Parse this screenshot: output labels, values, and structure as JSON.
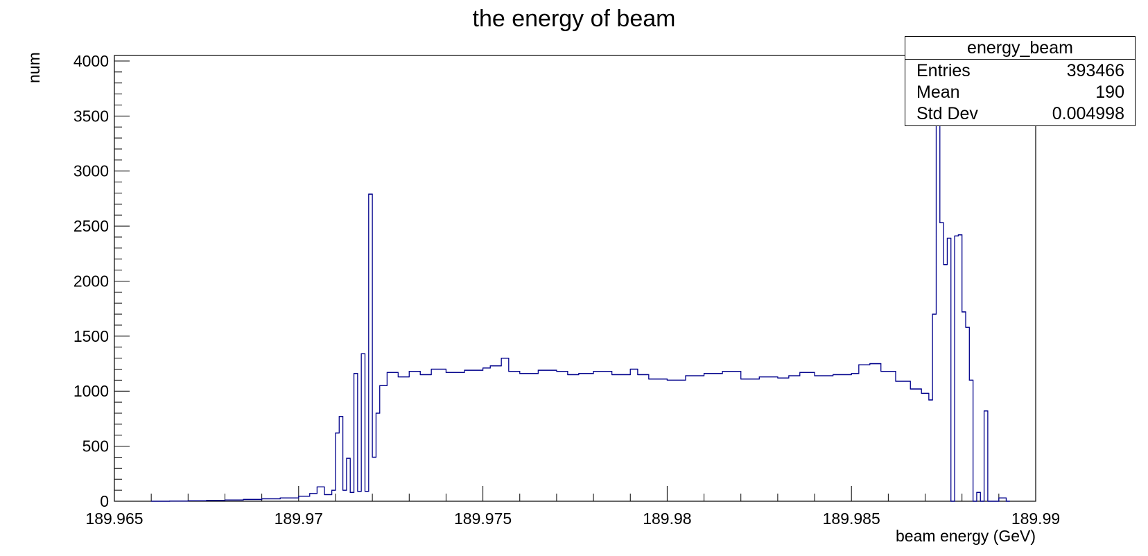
{
  "chart_data": {
    "type": "histogram",
    "title": "the energy of beam",
    "xlabel": "beam energy (GeV)",
    "ylabel": "num",
    "xlim": [
      189.965,
      189.99
    ],
    "ylim": [
      0,
      4050
    ],
    "xticks": [
      189.965,
      189.97,
      189.975,
      189.98,
      189.985,
      189.99
    ],
    "xtick_labels": [
      "189.965",
      "189.97",
      "189.975",
      "189.98",
      "189.985",
      "189.99"
    ],
    "yticks": [
      0,
      500,
      1000,
      1500,
      2000,
      2500,
      3000,
      3500,
      4000
    ],
    "ytick_labels": [
      "0",
      "500",
      "1000",
      "1500",
      "2000",
      "2500",
      "3000",
      "3500",
      "4000"
    ],
    "line_color": "#00008b",
    "series": [
      {
        "points": [
          [
            189.966,
            0
          ],
          [
            189.9665,
            2
          ],
          [
            189.967,
            4
          ],
          [
            189.9675,
            8
          ],
          [
            189.968,
            12
          ],
          [
            189.9685,
            16
          ],
          [
            189.969,
            22
          ],
          [
            189.9695,
            30
          ],
          [
            189.97,
            45
          ],
          [
            189.9703,
            70
          ],
          [
            189.9705,
            130
          ],
          [
            189.9707,
            60
          ],
          [
            189.9709,
            100
          ],
          [
            189.971,
            620
          ],
          [
            189.9711,
            770
          ],
          [
            189.9712,
            100
          ],
          [
            189.9713,
            390
          ],
          [
            189.9714,
            80
          ],
          [
            189.9715,
            1160
          ],
          [
            189.9716,
            90
          ],
          [
            189.9717,
            1340
          ],
          [
            189.9718,
            90
          ],
          [
            189.9719,
            2790
          ],
          [
            189.972,
            400
          ],
          [
            189.9721,
            800
          ],
          [
            189.9722,
            1050
          ],
          [
            189.9724,
            1170
          ],
          [
            189.9727,
            1130
          ],
          [
            189.973,
            1180
          ],
          [
            189.9733,
            1150
          ],
          [
            189.9736,
            1200
          ],
          [
            189.974,
            1170
          ],
          [
            189.9745,
            1190
          ],
          [
            189.975,
            1210
          ],
          [
            189.9752,
            1230
          ],
          [
            189.9755,
            1300
          ],
          [
            189.9757,
            1180
          ],
          [
            189.976,
            1160
          ],
          [
            189.9765,
            1190
          ],
          [
            189.977,
            1180
          ],
          [
            189.9773,
            1150
          ],
          [
            189.9776,
            1160
          ],
          [
            189.978,
            1180
          ],
          [
            189.9785,
            1150
          ],
          [
            189.979,
            1200
          ],
          [
            189.9792,
            1150
          ],
          [
            189.9795,
            1110
          ],
          [
            189.98,
            1100
          ],
          [
            189.9805,
            1140
          ],
          [
            189.981,
            1160
          ],
          [
            189.9815,
            1180
          ],
          [
            189.982,
            1110
          ],
          [
            189.9825,
            1130
          ],
          [
            189.983,
            1120
          ],
          [
            189.9833,
            1140
          ],
          [
            189.9836,
            1170
          ],
          [
            189.984,
            1140
          ],
          [
            189.9845,
            1150
          ],
          [
            189.985,
            1160
          ],
          [
            189.9852,
            1240
          ],
          [
            189.9855,
            1250
          ],
          [
            189.9858,
            1180
          ],
          [
            189.9862,
            1090
          ],
          [
            189.9866,
            1020
          ],
          [
            189.9869,
            980
          ],
          [
            189.9871,
            920
          ],
          [
            189.9872,
            1700
          ],
          [
            189.9873,
            3440
          ],
          [
            189.9874,
            2530
          ],
          [
            189.9875,
            2150
          ],
          [
            189.9876,
            2390
          ],
          [
            189.9877,
            0
          ],
          [
            189.9878,
            2410
          ],
          [
            189.9879,
            2420
          ],
          [
            189.988,
            1720
          ],
          [
            189.9881,
            1580
          ],
          [
            189.9882,
            1100
          ],
          [
            189.9883,
            0
          ],
          [
            189.9884,
            80
          ],
          [
            189.9885,
            0
          ],
          [
            189.9886,
            820
          ],
          [
            189.9887,
            0
          ],
          [
            189.989,
            30
          ],
          [
            189.9892,
            0
          ]
        ]
      }
    ],
    "stats_box": {
      "title": "energy_beam",
      "rows": [
        {
          "label": "Entries",
          "value": "393466"
        },
        {
          "label": "Mean",
          "value": "190"
        },
        {
          "label": "Std Dev",
          "value": "0.004998"
        }
      ]
    }
  }
}
